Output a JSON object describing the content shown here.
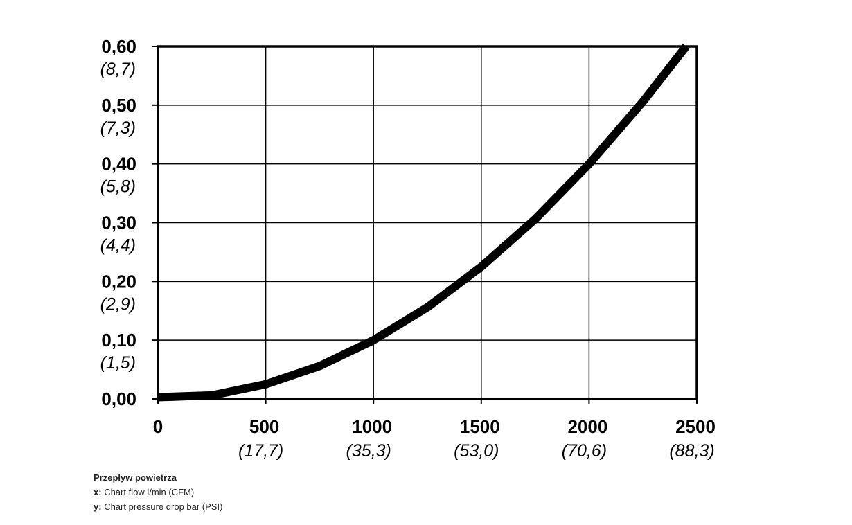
{
  "chart_data": {
    "type": "line",
    "x": [
      0,
      250,
      500,
      750,
      1000,
      1250,
      1500,
      1750,
      2000,
      2250,
      2450
    ],
    "series": [
      {
        "color": "#000000",
        "values": [
          0.003,
          0.006,
          0.025,
          0.056,
          0.1,
          0.156,
          0.225,
          0.306,
          0.4,
          0.506,
          0.6
        ]
      }
    ],
    "xlim": [
      0,
      2500
    ],
    "xticks": [
      0,
      500,
      1000,
      1500,
      2000,
      2500
    ],
    "xtick_sublabels": [
      null,
      "(17,7)",
      "(35,3)",
      "(53,0)",
      "(70,6)",
      "(88,3)"
    ],
    "ylim": [
      0,
      0.6
    ],
    "yticks": [
      {
        "value": 0,
        "label": "0,00"
      },
      {
        "value": 0.1,
        "label": "0,10"
      },
      {
        "value": 0.2,
        "label": "0,20"
      },
      {
        "value": 0.3,
        "label": "0,30"
      },
      {
        "value": 0.4,
        "label": "0,40"
      },
      {
        "value": 0.5,
        "label": "0,50"
      },
      {
        "value": 0.6,
        "label": "0,60"
      }
    ],
    "ytick_sublabels": [
      null,
      "(1,5)",
      "(2,9)",
      "(4,4)",
      "(5,8)",
      "(7,3)",
      "(8,7)"
    ],
    "grid": true
  },
  "caption": {
    "title": "Przepływ powietrza",
    "x_key": "x:",
    "x_text": "Chart flow l/min (CFM)",
    "y_key": "y:",
    "y_text": "Chart pressure drop bar (PSI)"
  }
}
